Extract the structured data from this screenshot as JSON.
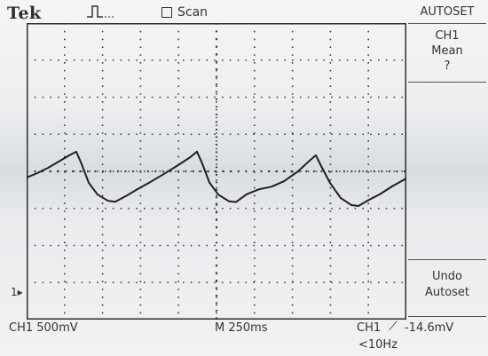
{
  "header": {
    "brand": "Tek",
    "trigger_icon": "trigger-pulse-icon",
    "scan_label": "Scan"
  },
  "menu": {
    "title": "AUTOSET",
    "ch_label": "CH1",
    "measure_label": "Mean",
    "measure_value": "?",
    "undo_line1": "Undo",
    "undo_line2": "Autoset"
  },
  "readout": {
    "ch1_scale": "CH1  500mV",
    "timebase": "M 250ms",
    "trigger_source": "CH1",
    "trigger_level": "-14.6mV",
    "trigger_freq": "<10Hz",
    "ground_marker": "1"
  },
  "colors": {
    "trace": "#1f1f1f",
    "grid": "#3a3a3a"
  }
}
